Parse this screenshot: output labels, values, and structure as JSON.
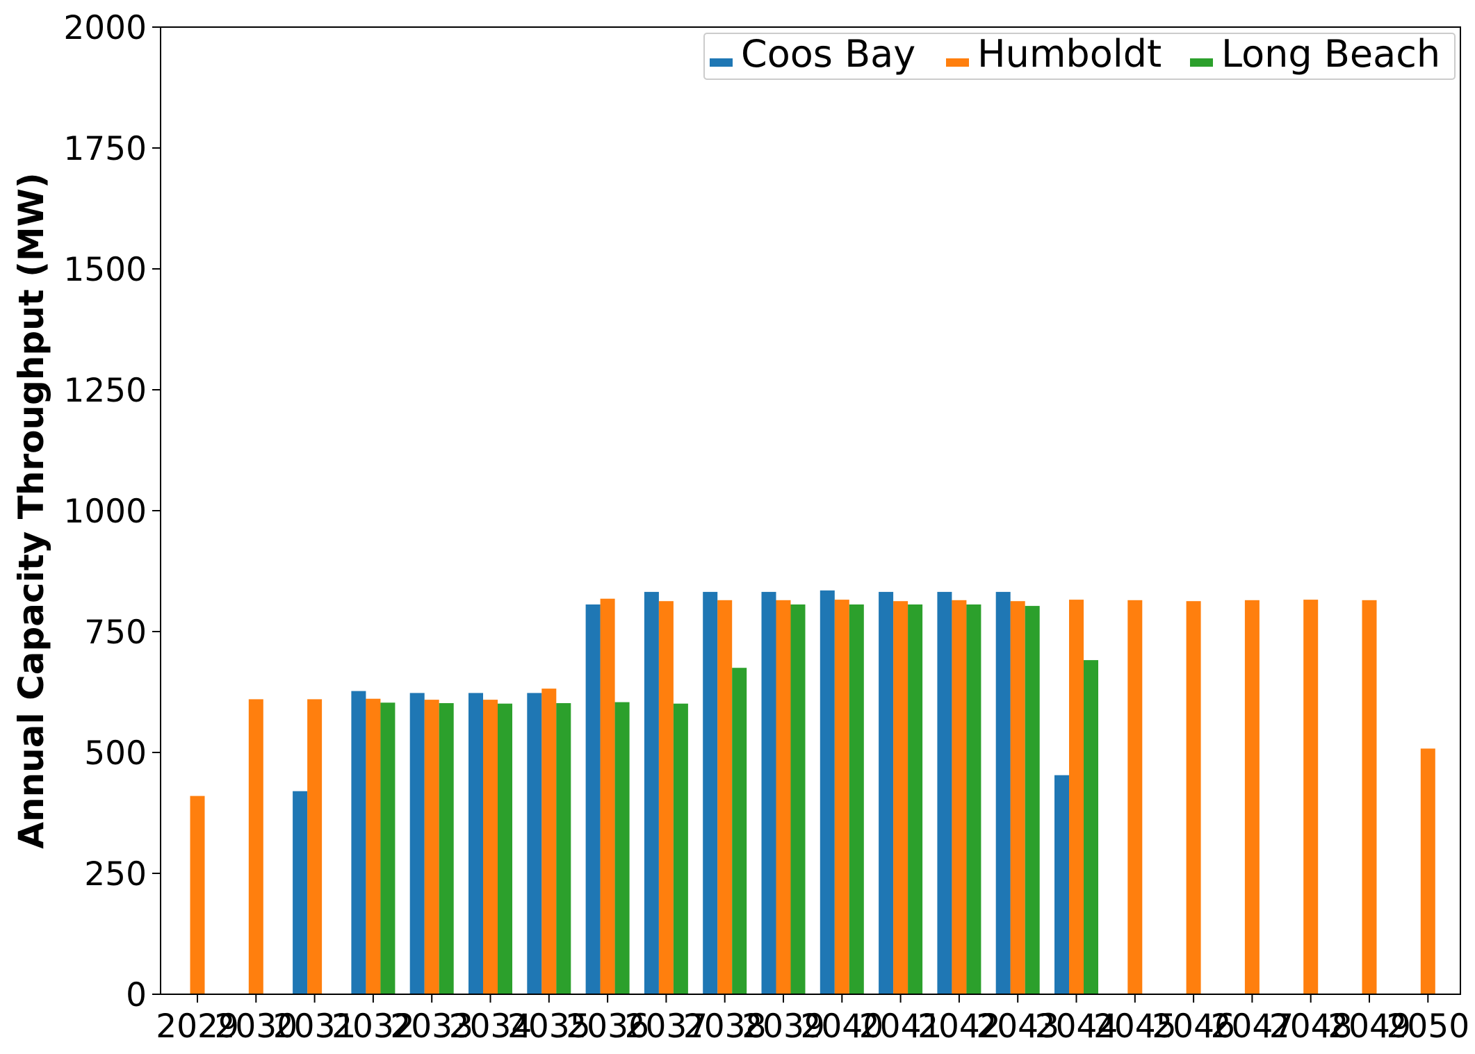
{
  "colors": {
    "coos_bay": "#1f77b4",
    "humboldt": "#ff7f0e",
    "long_beach": "#2ca02c"
  },
  "chart_data": {
    "type": "bar",
    "title": "",
    "xlabel": "",
    "ylabel": "Annual Capacity Throughput (MW)",
    "ylim": [
      0,
      2000
    ],
    "yticks": [
      "0",
      "250",
      "500",
      "750",
      "1000",
      "1250",
      "1500",
      "1750",
      "2000"
    ],
    "grid": false,
    "legend_position": "top-right",
    "categories": [
      "2029",
      "2030",
      "2031",
      "2032",
      "2033",
      "2034",
      "2035",
      "2036",
      "2037",
      "2038",
      "2039",
      "2040",
      "2041",
      "2042",
      "2043",
      "2044",
      "2045",
      "2046",
      "2047",
      "2048",
      "2049",
      "2050"
    ],
    "series": [
      {
        "name": "Coos Bay",
        "color": "#1f77b4",
        "values": [
          0,
          0,
          420,
          627,
          623,
          623,
          623,
          806,
          832,
          832,
          832,
          835,
          832,
          832,
          832,
          453,
          0,
          0,
          0,
          0,
          0,
          0
        ]
      },
      {
        "name": "Humboldt",
        "color": "#ff7f0e",
        "values": [
          410,
          610,
          610,
          611,
          609,
          609,
          632,
          818,
          813,
          815,
          815,
          816,
          813,
          815,
          813,
          816,
          815,
          813,
          815,
          816,
          815,
          508
        ]
      },
      {
        "name": "Long Beach",
        "color": "#2ca02c",
        "values": [
          0,
          0,
          0,
          603,
          602,
          601,
          602,
          604,
          601,
          675,
          806,
          806,
          806,
          806,
          803,
          691,
          0,
          0,
          0,
          0,
          0,
          0
        ]
      }
    ]
  }
}
